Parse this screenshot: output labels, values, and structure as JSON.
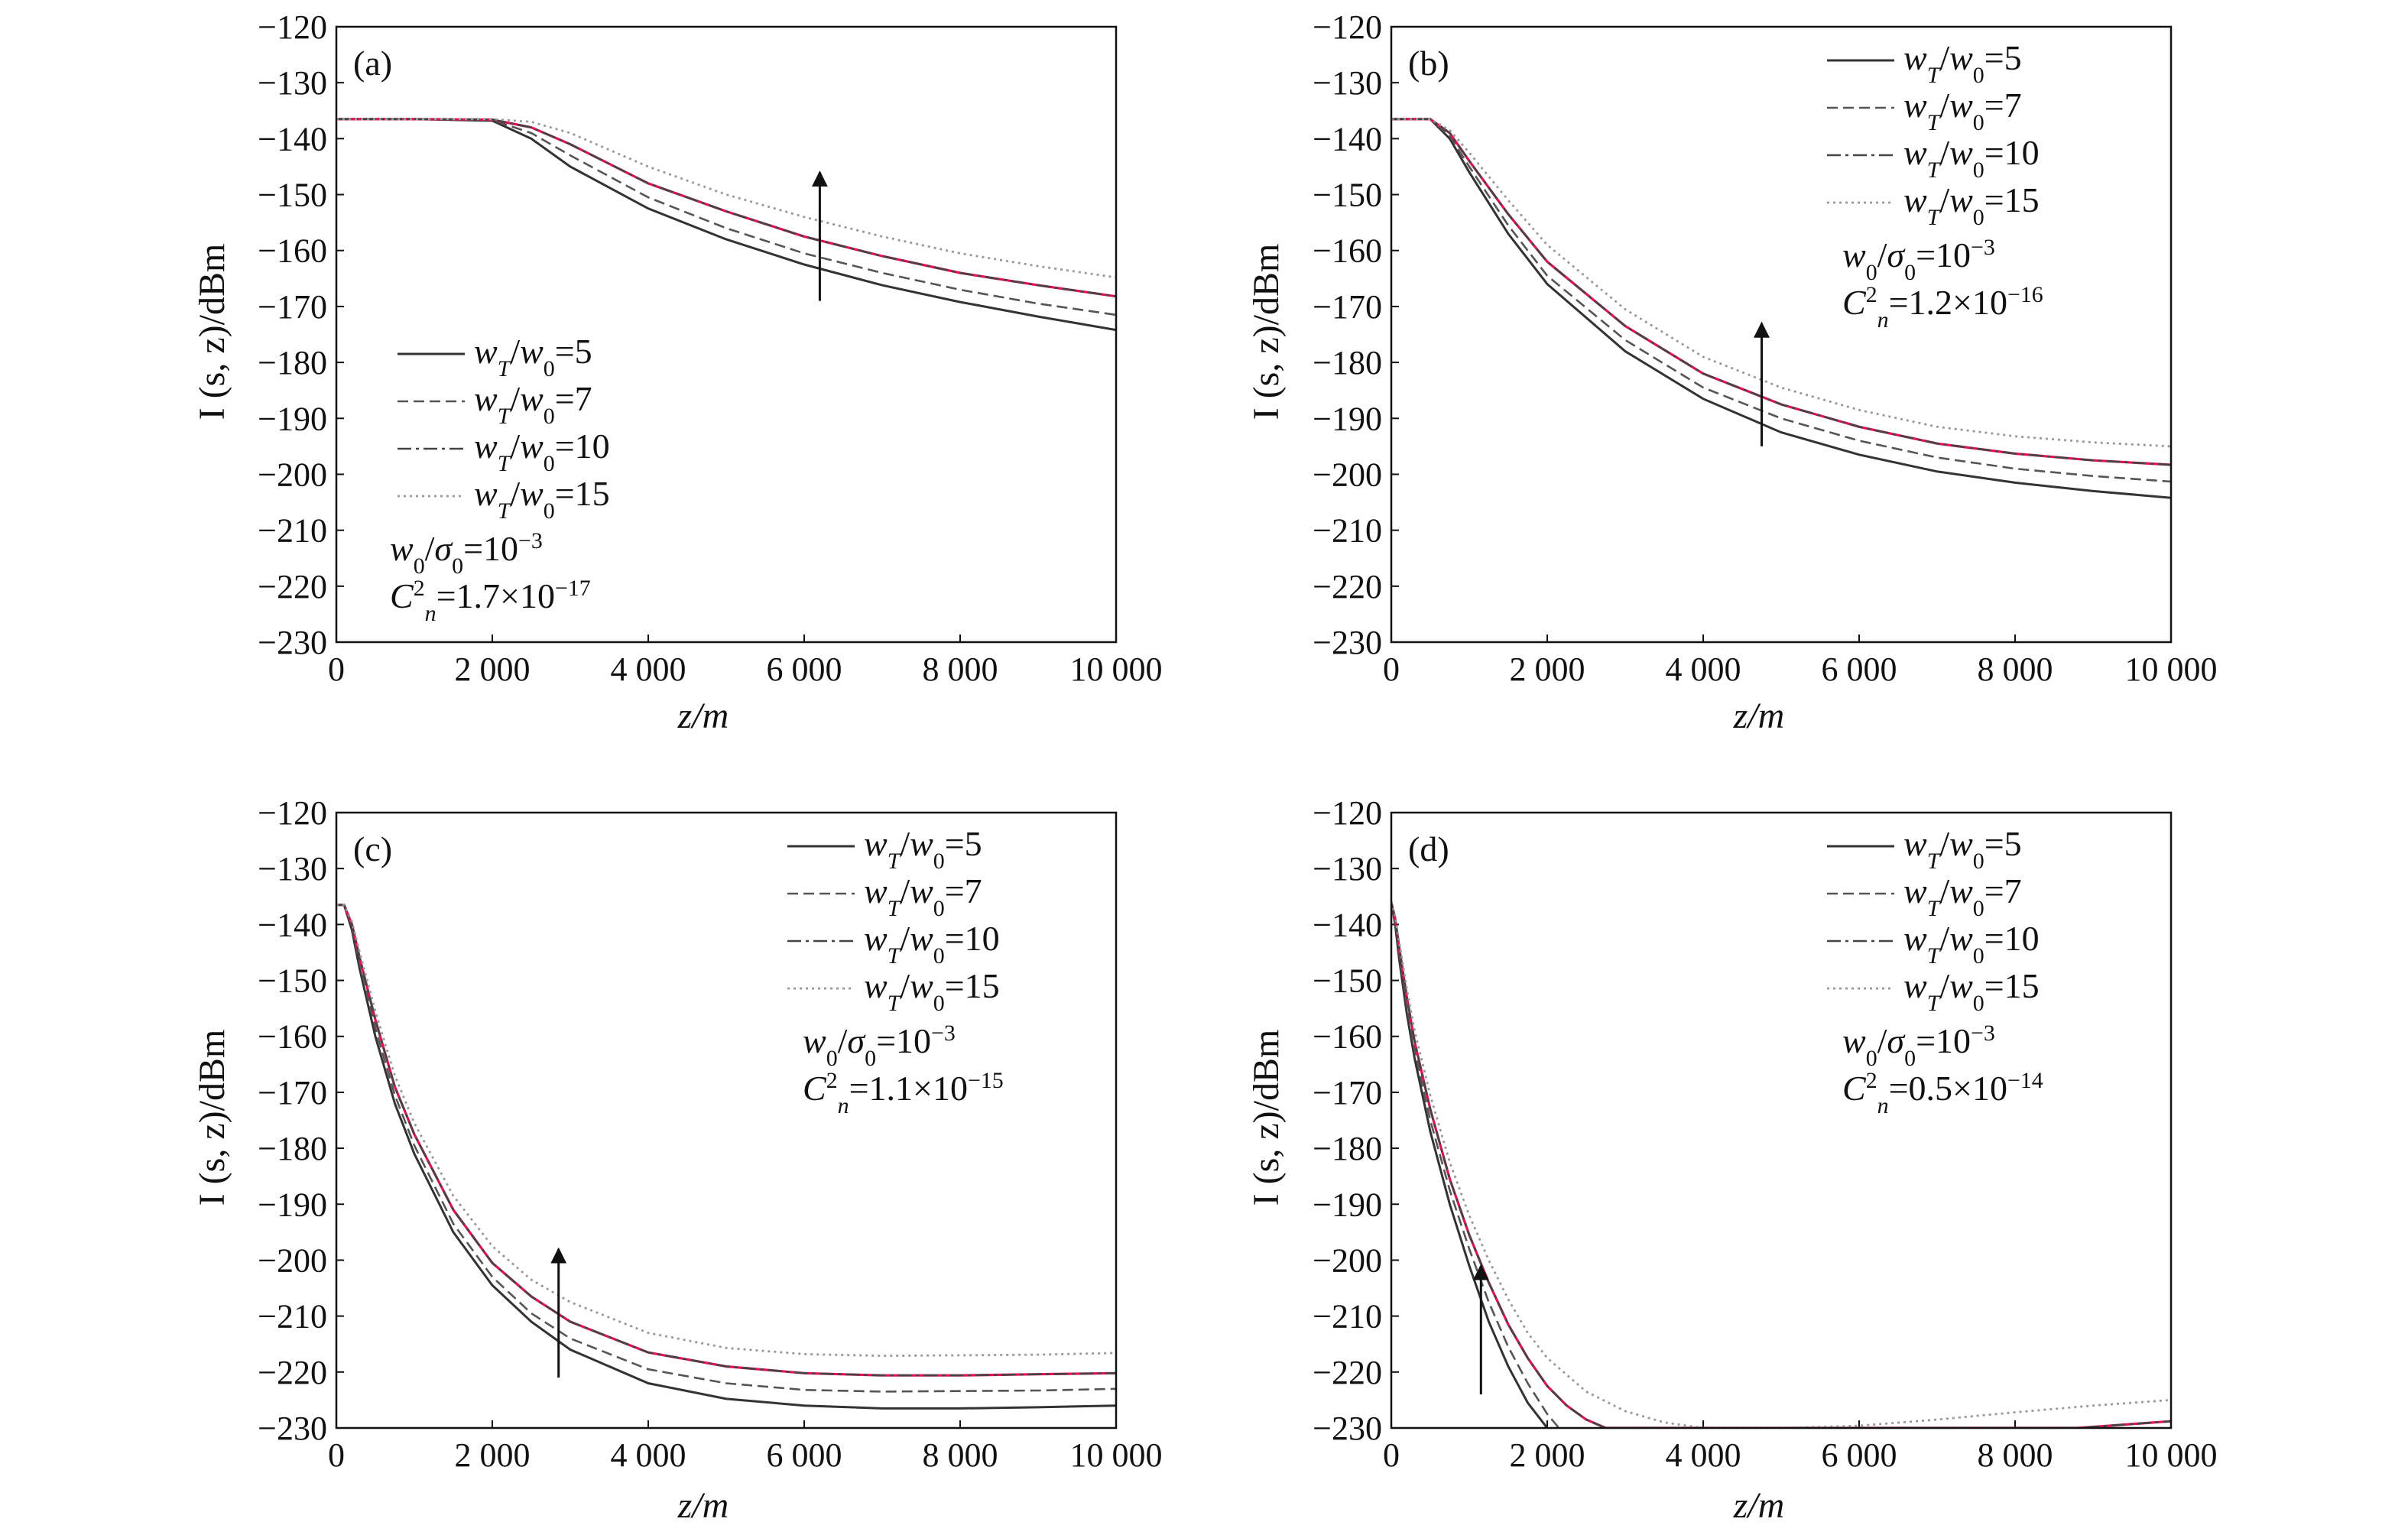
{
  "chart_data": [
    {
      "type": "line",
      "panel_label": "(a)",
      "xlabel": "z/m",
      "ylabel": "I (s, z)/dBm",
      "xlim": [
        0,
        10000
      ],
      "ylim": [
        -230,
        -120
      ],
      "x_ticks": [
        0,
        2000,
        4000,
        6000,
        8000,
        10000
      ],
      "x_tick_labels": [
        "0",
        "2 000",
        "4 000",
        "6 000",
        "8 000",
        "10 000"
      ],
      "y_ticks": [
        -120,
        -130,
        -140,
        -150,
        -160,
        -170,
        -180,
        -190,
        -200,
        -210,
        -220,
        -230
      ],
      "y_tick_labels": [
        "−120",
        "−130",
        "−140",
        "−150",
        "−160",
        "−170",
        "−180",
        "−190",
        "−200",
        "−210",
        "−220",
        "−230"
      ],
      "legend_position": "bottom-left",
      "params": [
        "w0/σ0=10^−3",
        "Cn²=1.7×10^−17"
      ],
      "arrow": {
        "x": 6200,
        "y_from": -169,
        "y_to": -146
      },
      "series": [
        {
          "name": "wT/w0=5",
          "color": "#333333",
          "style": "solid",
          "x": [
            0,
            1000,
            2000,
            2500,
            3000,
            4000,
            5000,
            6000,
            7000,
            8000,
            9000,
            10000
          ],
          "y": [
            -136.5,
            -136.5,
            -136.8,
            -140,
            -145,
            -152.5,
            -158,
            -162.5,
            -166.2,
            -169.2,
            -171.8,
            -174.2
          ]
        },
        {
          "name": "wT/w0=7",
          "color": "#555555",
          "style": "dashed",
          "x": [
            0,
            1000,
            2000,
            2500,
            3000,
            4000,
            5000,
            6000,
            7000,
            8000,
            9000,
            10000
          ],
          "y": [
            -136.5,
            -136.5,
            -136.7,
            -139,
            -143,
            -150.5,
            -156,
            -160.5,
            -164,
            -167,
            -169.5,
            -171.5
          ]
        },
        {
          "name": "wT/w0=10",
          "color": "#444444",
          "style": "dashdot",
          "highlight": "#e0105a",
          "x": [
            0,
            1000,
            2000,
            2500,
            3000,
            4000,
            5000,
            6000,
            7000,
            8000,
            9000,
            10000
          ],
          "y": [
            -136.5,
            -136.5,
            -136.6,
            -138,
            -141,
            -148,
            -153,
            -157.5,
            -161,
            -164,
            -166.2,
            -168.2
          ]
        },
        {
          "name": "wT/w0=15",
          "color": "#999999",
          "style": "dotted",
          "x": [
            0,
            1000,
            2000,
            2500,
            3000,
            4000,
            5000,
            6000,
            7000,
            8000,
            9000,
            10000
          ],
          "y": [
            -136.5,
            -136.5,
            -136.5,
            -137,
            -139,
            -145,
            -150,
            -154,
            -157.5,
            -160.5,
            -162.8,
            -164.8
          ]
        }
      ]
    },
    {
      "type": "line",
      "panel_label": "(b)",
      "xlabel": "z/m",
      "ylabel": "I (s, z)/dBm",
      "xlim": [
        0,
        10000
      ],
      "ylim": [
        -230,
        -120
      ],
      "x_ticks": [
        0,
        2000,
        4000,
        6000,
        8000,
        10000
      ],
      "x_tick_labels": [
        "0",
        "2 000",
        "4 000",
        "6 000",
        "8 000",
        "10 000"
      ],
      "y_ticks": [
        -120,
        -130,
        -140,
        -150,
        -160,
        -170,
        -180,
        -190,
        -200,
        -210,
        -220,
        -230
      ],
      "y_tick_labels": [
        "−120",
        "−130",
        "−140",
        "−150",
        "−160",
        "−170",
        "−180",
        "−190",
        "−200",
        "−210",
        "−220",
        "−230"
      ],
      "legend_position": "top-right",
      "params": [
        "w0/σ0=10^−3",
        "Cn²=1.2×10^−16"
      ],
      "arrow": {
        "x": 4750,
        "y_from": -195,
        "y_to": -173
      },
      "series": [
        {
          "name": "wT/w0=5",
          "color": "#333333",
          "style": "solid",
          "x": [
            0,
            500,
            750,
            1000,
            1500,
            2000,
            3000,
            4000,
            5000,
            6000,
            7000,
            8000,
            9000,
            10000
          ],
          "y": [
            -136.5,
            -136.5,
            -140,
            -146,
            -157,
            -166,
            -178,
            -186.5,
            -192.5,
            -196.5,
            -199.5,
            -201.5,
            -203,
            -204.2
          ]
        },
        {
          "name": "wT/w0=7",
          "color": "#555555",
          "style": "dashed",
          "x": [
            0,
            500,
            750,
            1000,
            1500,
            2000,
            3000,
            4000,
            5000,
            6000,
            7000,
            8000,
            9000,
            10000
          ],
          "y": [
            -136.5,
            -136.5,
            -139.5,
            -145,
            -155.5,
            -164.5,
            -176,
            -184.5,
            -190,
            -194,
            -197,
            -199,
            -200.3,
            -201.3
          ]
        },
        {
          "name": "wT/w0=10",
          "color": "#444444",
          "style": "dashdot",
          "highlight": "#e0105a",
          "x": [
            0,
            500,
            750,
            1000,
            1500,
            2000,
            3000,
            4000,
            5000,
            6000,
            7000,
            8000,
            9000,
            10000
          ],
          "y": [
            -136.5,
            -136.5,
            -139,
            -144,
            -153.5,
            -162,
            -173.5,
            -182,
            -187.5,
            -191.5,
            -194.5,
            -196.3,
            -197.5,
            -198.3
          ]
        },
        {
          "name": "wT/w0=15",
          "color": "#999999",
          "style": "dotted",
          "x": [
            0,
            500,
            750,
            1000,
            1500,
            2000,
            3000,
            4000,
            5000,
            6000,
            7000,
            8000,
            9000,
            10000
          ],
          "y": [
            -136.5,
            -136.5,
            -138.5,
            -142.5,
            -151,
            -159,
            -170.5,
            -179,
            -184.5,
            -188.5,
            -191.5,
            -193.2,
            -194.3,
            -195
          ]
        }
      ]
    },
    {
      "type": "line",
      "panel_label": "(c)",
      "xlabel": "z/m",
      "ylabel": "I (s, z)/dBm",
      "xlim": [
        0,
        10000
      ],
      "ylim": [
        -230,
        -120
      ],
      "x_ticks": [
        0,
        2000,
        4000,
        6000,
        8000,
        10000
      ],
      "x_tick_labels": [
        "0",
        "2 000",
        "4 000",
        "6 000",
        "8 000",
        "10 000"
      ],
      "y_ticks": [
        -120,
        -130,
        -140,
        -150,
        -160,
        -170,
        -180,
        -190,
        -200,
        -210,
        -220,
        -230
      ],
      "y_tick_labels": [
        "−120",
        "−130",
        "−140",
        "−150",
        "−160",
        "−170",
        "−180",
        "−190",
        "−200",
        "−210",
        "−220",
        "−230"
      ],
      "legend_position": "top-right",
      "params": [
        "w0/σ0=10^−3",
        "Cn²=1.1×10^−15"
      ],
      "arrow": {
        "x": 2850,
        "y_from": -221,
        "y_to": -198
      },
      "series": [
        {
          "name": "wT/w0=5",
          "color": "#333333",
          "style": "solid",
          "x": [
            0,
            100,
            200,
            300,
            500,
            750,
            1000,
            1500,
            2000,
            2500,
            3000,
            4000,
            5000,
            6000,
            7000,
            8000,
            9000,
            10000
          ],
          "y": [
            -136.5,
            -136.5,
            -141,
            -148,
            -160,
            -172,
            -181,
            -195,
            -204.5,
            -211,
            -216,
            -222,
            -224.8,
            -226,
            -226.5,
            -226.5,
            -226.3,
            -226
          ]
        },
        {
          "name": "wT/w0=7",
          "color": "#555555",
          "style": "dashed",
          "x": [
            0,
            100,
            200,
            300,
            500,
            750,
            1000,
            1500,
            2000,
            2500,
            3000,
            4000,
            5000,
            6000,
            7000,
            8000,
            9000,
            10000
          ],
          "y": [
            -136.5,
            -136.5,
            -140.5,
            -147,
            -158.5,
            -170.5,
            -179.5,
            -193.5,
            -203,
            -209.5,
            -214,
            -219.5,
            -222,
            -223.2,
            -223.5,
            -223.4,
            -223.3,
            -223
          ]
        },
        {
          "name": "wT/w0=10",
          "color": "#444444",
          "style": "dashdot",
          "highlight": "#e0105a",
          "x": [
            0,
            100,
            200,
            300,
            500,
            750,
            1000,
            1500,
            2000,
            2500,
            3000,
            4000,
            5000,
            6000,
            7000,
            8000,
            9000,
            10000
          ],
          "y": [
            -136.5,
            -136.5,
            -140,
            -146,
            -157,
            -169,
            -177.5,
            -191,
            -200.5,
            -206.5,
            -211,
            -216.5,
            -219,
            -220.2,
            -220.6,
            -220.6,
            -220.4,
            -220.2
          ]
        },
        {
          "name": "wT/w0=15",
          "color": "#999999",
          "style": "dotted",
          "x": [
            0,
            100,
            200,
            300,
            500,
            750,
            1000,
            1500,
            2000,
            2500,
            3000,
            4000,
            5000,
            6000,
            7000,
            8000,
            9000,
            10000
          ],
          "y": [
            -136.5,
            -136.5,
            -139.5,
            -145,
            -155.5,
            -167,
            -175.5,
            -188.5,
            -197.5,
            -203.5,
            -207.5,
            -213,
            -215.7,
            -216.8,
            -217.1,
            -217,
            -216.9,
            -216.6
          ]
        }
      ]
    },
    {
      "type": "line",
      "panel_label": "(d)",
      "xlabel": "z/m",
      "ylabel": "I (s, z)/dBm",
      "xlim": [
        0,
        10000
      ],
      "ylim": [
        -230,
        -120
      ],
      "x_ticks": [
        0,
        2000,
        4000,
        6000,
        8000,
        10000
      ],
      "x_tick_labels": [
        "0",
        "2 000",
        "4 000",
        "6 000",
        "8 000",
        "10 000"
      ],
      "y_ticks": [
        -120,
        -130,
        -140,
        -150,
        -160,
        -170,
        -180,
        -190,
        -200,
        -210,
        -220,
        -230
      ],
      "y_tick_labels": [
        "−120",
        "−130",
        "−140",
        "−150",
        "−160",
        "−170",
        "−180",
        "−190",
        "−200",
        "−210",
        "−220",
        "−230"
      ],
      "legend_position": "top-right",
      "params": [
        "w0/σ0=10^−3",
        "Cn²=0.5×10^−14"
      ],
      "arrow": {
        "x": 1150,
        "y_from": -224,
        "y_to": -201
      },
      "series": [
        {
          "name": "wT/w0=5",
          "color": "#333333",
          "style": "solid",
          "x": [
            0,
            50,
            100,
            200,
            300,
            500,
            750,
            1000,
            1250,
            1500,
            1750,
            2000
          ],
          "y": [
            -136,
            -140,
            -146,
            -156,
            -164,
            -177,
            -190,
            -201,
            -211,
            -219,
            -225.5,
            -230
          ]
        },
        {
          "name": "wT/w0=7",
          "color": "#555555",
          "style": "dashed",
          "x": [
            0,
            50,
            100,
            200,
            300,
            500,
            750,
            1000,
            1250,
            1500,
            1750,
            2000,
            2150
          ],
          "y": [
            -136,
            -139.5,
            -145,
            -154.5,
            -162.5,
            -175,
            -187.5,
            -198,
            -207.5,
            -215.5,
            -222,
            -227.5,
            -230
          ]
        },
        {
          "name": "wT/w0=10",
          "color": "#444444",
          "style": "dashdot",
          "highlight": "#e0105a",
          "x": [
            0,
            50,
            100,
            200,
            300,
            500,
            750,
            1000,
            1250,
            1500,
            1750,
            2000,
            2250,
            2500,
            2750,
            8800,
            9200,
            9600,
            10000
          ],
          "y": [
            -136,
            -139,
            -144,
            -153,
            -161,
            -173,
            -185.5,
            -195.5,
            -204,
            -211.5,
            -217.5,
            -222.5,
            -226,
            -228.5,
            -230,
            -230,
            -229.6,
            -229.2,
            -228.8
          ]
        },
        {
          "name": "wT/w0=15",
          "color": "#999999",
          "style": "dotted",
          "x": [
            0,
            50,
            100,
            200,
            300,
            500,
            750,
            1000,
            1250,
            1500,
            1750,
            2000,
            2500,
            3000,
            3500,
            4000,
            5000,
            6000,
            7000,
            8000,
            9000,
            10000
          ],
          "y": [
            -136,
            -138.5,
            -143,
            -151.5,
            -159,
            -170.5,
            -182.5,
            -192,
            -200,
            -207,
            -213,
            -217.5,
            -223.5,
            -227,
            -229,
            -230,
            -230,
            -229.6,
            -228.5,
            -227.2,
            -226,
            -225
          ]
        }
      ]
    }
  ]
}
